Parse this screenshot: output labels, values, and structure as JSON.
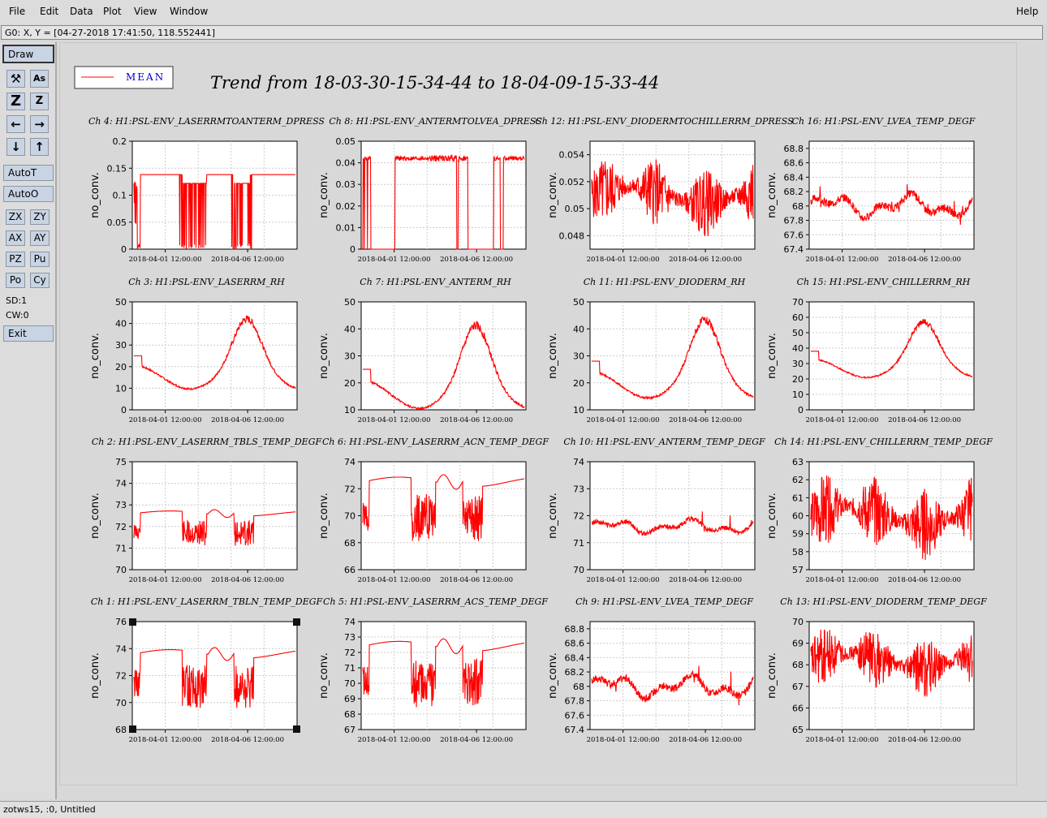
{
  "menu": {
    "file": "File",
    "edit": "Edit",
    "data": "Data",
    "plot": "Plot",
    "view": "View",
    "window": "Window",
    "help": "Help"
  },
  "coord_readout": "G0: X, Y = [04-27-2018 17:41:50, 118.552441]",
  "toolbar": {
    "draw": "Draw",
    "autot": "AutoT",
    "autoo": "AutoO",
    "zx": "ZX",
    "zy": "ZY",
    "ax": "AX",
    "ay": "AY",
    "pz": "PZ",
    "pu": "Pu",
    "po": "Po",
    "cy": "Cy",
    "sd": "SD:1",
    "cw": "CW:0",
    "exit": "Exit",
    "icons": [
      "magnify-icon",
      "text-icon",
      "zoom-big-icon",
      "zoom-small-icon",
      "arrow-left-icon",
      "arrow-right-icon",
      "arrow-down-icon",
      "arrow-up-icon"
    ]
  },
  "status": "zotws15, :0, Untitled",
  "chart_data": {
    "type": "line",
    "title": "Trend from 18-03-30-15-34-44 to 18-04-09-15-33-44",
    "legend": {
      "label": "MEAN",
      "placement": "top-left"
    },
    "series_color": "#ff0000",
    "grid": true,
    "ylabel": "no_conv.",
    "x_ticks": [
      "2018-04-01 12:00:00",
      "2018-04-06 12:00:00"
    ],
    "panels": [
      {
        "title": "Ch 4: H1:PSL-ENV_LASERRMTOANTERM_DPRESS",
        "ylim": [
          0,
          0.2
        ],
        "yticks": [
          "0",
          "0.05",
          "0.1",
          "0.15",
          "0.2"
        ],
        "style": "dpress",
        "base": 0.138,
        "low": 0.122
      },
      {
        "title": "Ch 8: H1:PSL-ENV_ANTERMTOLVEA_DPRESS",
        "ylim": [
          0,
          0.05
        ],
        "yticks": [
          "0",
          "0.01",
          "0.02",
          "0.03",
          "0.04",
          "0.05"
        ],
        "style": "dpress2",
        "base": 0.042,
        "low": 0.04
      },
      {
        "title": "Ch 12: H1:PSL-ENV_DIODERMTOCHILLERRM_DPRESS",
        "ylim": [
          0.047,
          0.055
        ],
        "yticks": [
          "0.048",
          "0.05",
          "0.052",
          "0.054"
        ],
        "style": "noise",
        "base": 0.051,
        "amp": 0.0025
      },
      {
        "title": "Ch 16: H1:PSL-ENV_LVEA_TEMP_DEGF",
        "ylim": [
          67.4,
          68.9
        ],
        "yticks": [
          "67.4",
          "67.6",
          "67.8",
          "68",
          "68.2",
          "68.4",
          "68.6",
          "68.8"
        ],
        "style": "wander",
        "base": 68.0,
        "amp": 0.3
      },
      {
        "title": "Ch 3: H1:PSL-ENV_LASERRM_RH",
        "ylim": [
          0,
          50
        ],
        "yticks": [
          "0",
          "10",
          "20",
          "30",
          "40",
          "50"
        ],
        "style": "rh",
        "base": 25,
        "amp": 18
      },
      {
        "title": "Ch 7: H1:PSL-ENV_ANTERM_RH",
        "ylim": [
          10,
          50
        ],
        "yticks": [
          "10",
          "20",
          "30",
          "40",
          "50"
        ],
        "style": "rh",
        "base": 25,
        "amp": 17
      },
      {
        "title": "Ch 11: H1:PSL-ENV_DIODERM_RH",
        "ylim": [
          10,
          50
        ],
        "yticks": [
          "10",
          "20",
          "30",
          "40",
          "50"
        ],
        "style": "rh",
        "base": 28,
        "amp": 16
      },
      {
        "title": "Ch 15: H1:PSL-ENV_CHILLERRM_RH",
        "ylim": [
          0,
          70
        ],
        "yticks": [
          "0",
          "10",
          "20",
          "30",
          "40",
          "50",
          "60",
          "70"
        ],
        "style": "rh",
        "base": 38,
        "amp": 20
      },
      {
        "title": "Ch 2: H1:PSL-ENV_LASERRM_TBLS_TEMP_DEGF",
        "ylim": [
          70,
          75
        ],
        "yticks": [
          "70",
          "71",
          "72",
          "73",
          "74",
          "75"
        ],
        "style": "temp",
        "base": 72.6,
        "amp": 1.5
      },
      {
        "title": "Ch 6: H1:PSL-ENV_LASERRM_ACN_TEMP_DEGF",
        "ylim": [
          66,
          74
        ],
        "yticks": [
          "66",
          "68",
          "70",
          "72",
          "74"
        ],
        "style": "temp",
        "base": 72.5,
        "amp": 4.5
      },
      {
        "title": "Ch 10: H1:PSL-ENV_ANTERM_TEMP_DEGF",
        "ylim": [
          70,
          74
        ],
        "yticks": [
          "70",
          "71",
          "72",
          "73",
          "74"
        ],
        "style": "wander",
        "base": 71.6,
        "amp": 0.5
      },
      {
        "title": "Ch 14: H1:PSL-ENV_CHILLERRM_TEMP_DEGF",
        "ylim": [
          57,
          63
        ],
        "yticks": [
          "57",
          "58",
          "59",
          "60",
          "61",
          "62",
          "63"
        ],
        "style": "noise",
        "base": 60,
        "amp": 2.0
      },
      {
        "title": "Ch 1: H1:PSL-ENV_LASERRM_TBLN_TEMP_DEGF",
        "ylim": [
          68,
          76
        ],
        "yticks": [
          "68",
          "70",
          "72",
          "74",
          "76"
        ],
        "style": "temp",
        "base": 73.6,
        "amp": 4,
        "selected": true
      },
      {
        "title": "Ch 5: H1:PSL-ENV_LASERRM_ACS_TEMP_DEGF",
        "ylim": [
          67,
          74
        ],
        "yticks": [
          "67",
          "68",
          "69",
          "70",
          "71",
          "72",
          "73",
          "74"
        ],
        "style": "temp",
        "base": 72.4,
        "amp": 4
      },
      {
        "title": "Ch 9: H1:PSL-ENV_LVEA_TEMP_DEGF",
        "ylim": [
          67.4,
          68.9
        ],
        "yticks": [
          "67.4",
          "67.6",
          "67.8",
          "68",
          "68.2",
          "68.4",
          "68.6",
          "68.8"
        ],
        "style": "wander",
        "base": 68.0,
        "amp": 0.3
      },
      {
        "title": "Ch 13: H1:PSL-ENV_DIODERM_TEMP_DEGF",
        "ylim": [
          65,
          70
        ],
        "yticks": [
          "65",
          "66",
          "67",
          "68",
          "69",
          "70"
        ],
        "style": "noise",
        "base": 68.2,
        "amp": 1.4
      }
    ]
  }
}
